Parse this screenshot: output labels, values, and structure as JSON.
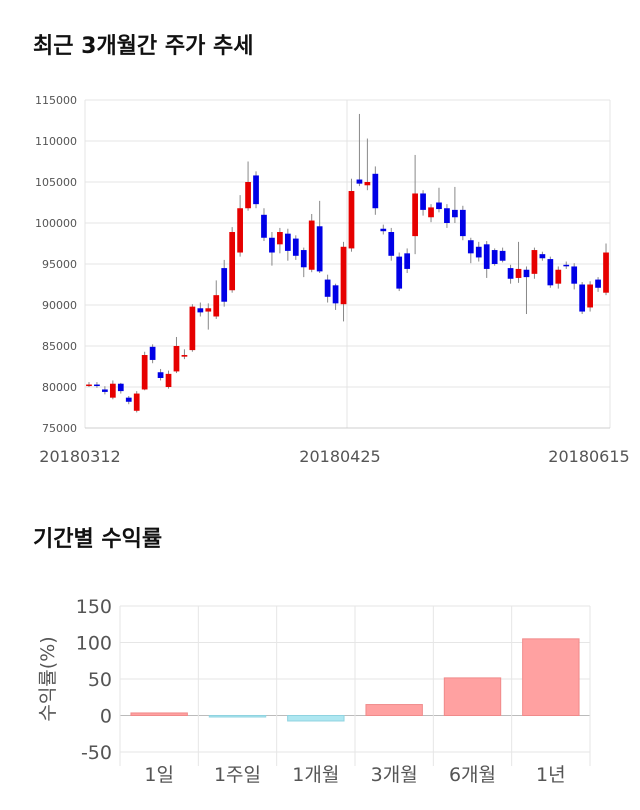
{
  "sections": {
    "price_title": "최근 3개월간 주가 추세",
    "return_title": "기간별 수익률"
  },
  "chart_data": [
    {
      "type": "candlestick",
      "title": "최근 3개월간 주가 추세",
      "ylim": [
        75000,
        115000
      ],
      "y_ticks": [
        "115000",
        "110000",
        "105000",
        "100000",
        "95000",
        "90000",
        "85000",
        "80000",
        "75000"
      ],
      "x_tick_labels": [
        "20180312",
        "20180425",
        "20180615"
      ],
      "grid": true,
      "up_color": "#e60000",
      "down_color": "#0000e6",
      "candles": [
        [
          80200,
          80300,
          80600,
          80000
        ],
        [
          80300,
          80200,
          80600,
          79900
        ],
        [
          79700,
          79400,
          80100,
          79100
        ],
        [
          78700,
          80400,
          80800,
          78500
        ],
        [
          80400,
          79500,
          80500,
          79200
        ],
        [
          78700,
          78200,
          78900,
          77900
        ],
        [
          77100,
          79200,
          79500,
          76900
        ],
        [
          79700,
          83900,
          84300,
          79600
        ],
        [
          84900,
          83300,
          85200,
          82900
        ],
        [
          81800,
          81100,
          82200,
          80800
        ],
        [
          80000,
          81600,
          82000,
          79800
        ],
        [
          81900,
          85000,
          86100,
          81700
        ],
        [
          83700,
          83900,
          84600,
          83400
        ],
        [
          84500,
          89800,
          90100,
          84300
        ],
        [
          89600,
          89100,
          90300,
          88600
        ],
        [
          89200,
          89600,
          90200,
          87000
        ],
        [
          88600,
          91200,
          93000,
          88300
        ],
        [
          94500,
          90400,
          95500,
          89800
        ],
        [
          91800,
          98900,
          99500,
          91500
        ],
        [
          96400,
          101800,
          103400,
          95900
        ],
        [
          101800,
          105000,
          107500,
          101500
        ],
        [
          105800,
          102300,
          106300,
          101800
        ],
        [
          101000,
          98200,
          101800,
          97800
        ],
        [
          98200,
          96400,
          98900,
          94800
        ],
        [
          97400,
          98900,
          99400,
          96300
        ],
        [
          98700,
          96600,
          99300,
          95400
        ],
        [
          98100,
          96000,
          98500,
          95500
        ],
        [
          96700,
          94600,
          97000,
          93400
        ],
        [
          94300,
          100300,
          101100,
          94000
        ],
        [
          99600,
          94100,
          102700,
          93900
        ],
        [
          93100,
          91000,
          93700,
          90300
        ],
        [
          92400,
          90200,
          92600,
          89400
        ],
        [
          90100,
          97100,
          97700,
          88000
        ],
        [
          96900,
          103900,
          105400,
          96500
        ],
        [
          105300,
          104800,
          113300,
          104500
        ],
        [
          104600,
          105000,
          110300,
          104000
        ],
        [
          106000,
          101800,
          106900,
          101000
        ],
        [
          99300,
          99000,
          99800,
          98600
        ],
        [
          98900,
          96000,
          99400,
          95400
        ],
        [
          95900,
          92000,
          96400,
          91700
        ],
        [
          96300,
          94400,
          96900,
          93900
        ],
        [
          98400,
          103600,
          108300,
          96200
        ],
        [
          103600,
          101600,
          104000,
          100900
        ],
        [
          100700,
          101900,
          102300,
          100100
        ],
        [
          102500,
          101700,
          104300,
          101300
        ],
        [
          101800,
          100000,
          102300,
          99400
        ],
        [
          101600,
          100700,
          104400,
          100000
        ],
        [
          101600,
          98400,
          102100,
          97900
        ],
        [
          97900,
          96300,
          98200,
          95100
        ],
        [
          97100,
          95800,
          97700,
          95300
        ],
        [
          97400,
          94400,
          97800,
          93300
        ],
        [
          96700,
          95000,
          96900,
          94800
        ],
        [
          96600,
          95400,
          97000,
          95200
        ],
        [
          94500,
          93200,
          94900,
          92600
        ],
        [
          93300,
          94400,
          97700,
          92700
        ],
        [
          94300,
          93400,
          94700,
          88900
        ],
        [
          93800,
          96700,
          97000,
          93200
        ],
        [
          96200,
          95700,
          96500,
          95400
        ],
        [
          95600,
          92400,
          95900,
          92100
        ],
        [
          92600,
          94300,
          94700,
          92000
        ],
        [
          94900,
          94800,
          95300,
          94400
        ],
        [
          94700,
          92600,
          95100,
          91900
        ],
        [
          92500,
          89200,
          92800,
          88900
        ],
        [
          89700,
          92500,
          92900,
          89200
        ],
        [
          93100,
          92100,
          93400,
          91600
        ],
        [
          91500,
          96400,
          97500,
          91200
        ]
      ]
    },
    {
      "type": "bar",
      "title": "기간별 수익률",
      "ylabel": "수익률(%)",
      "ylim": [
        -50,
        150
      ],
      "y_ticks": [
        "150",
        "100",
        "50",
        "0",
        "-50"
      ],
      "categories": [
        "1일",
        "1주일",
        "1개월",
        "3개월",
        "6개월",
        "1년"
      ],
      "values": [
        3.5,
        -1.5,
        -7.5,
        15.0,
        51.5,
        105.0
      ],
      "positive_color": "#ffa1a1",
      "negative_color": "#aee7f1",
      "grid": true
    }
  ]
}
